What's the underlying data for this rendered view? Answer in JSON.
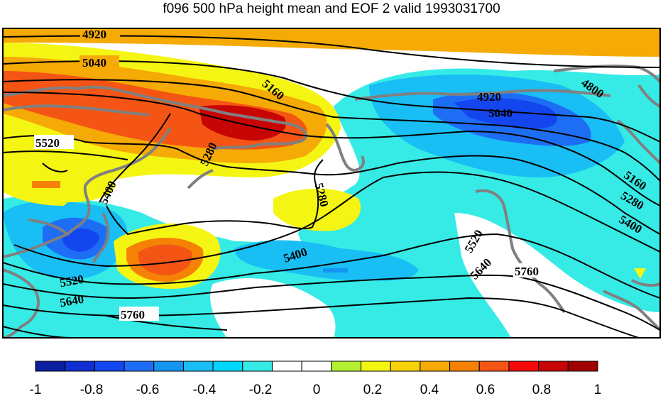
{
  "title": "f096 500 hPa height mean and EOF 2 valid 1993031700",
  "contour_labels": [
    "4920",
    "5040",
    "5160",
    "5280",
    "5520",
    "5400",
    "5280",
    "4920",
    "5040",
    "4800",
    "5160",
    "5280",
    "5400",
    "5520",
    "5640",
    "5760",
    "5400",
    "5520",
    "5640",
    "5760"
  ],
  "colorbar": {
    "tick_labels": [
      "-1",
      "-0.8",
      "-0.6",
      "-0.4",
      "-0.2",
      "0",
      "0.2",
      "0.4",
      "0.6",
      "0.8",
      "1"
    ],
    "colors": [
      "#0a1ea0",
      "#0f2fd2",
      "#1446f0",
      "#1e6ef5",
      "#1496f0",
      "#19bef5",
      "#00d7ff",
      "#36ebe6",
      "#ffffff",
      "#ffffff",
      "#b4f032",
      "#f5f514",
      "#f5d20a",
      "#f5aa05",
      "#f58205",
      "#f55514",
      "#f50a0a",
      "#c80505",
      "#a00000"
    ]
  },
  "colors": {
    "land_outline": "#808080",
    "contour": "#000000"
  }
}
